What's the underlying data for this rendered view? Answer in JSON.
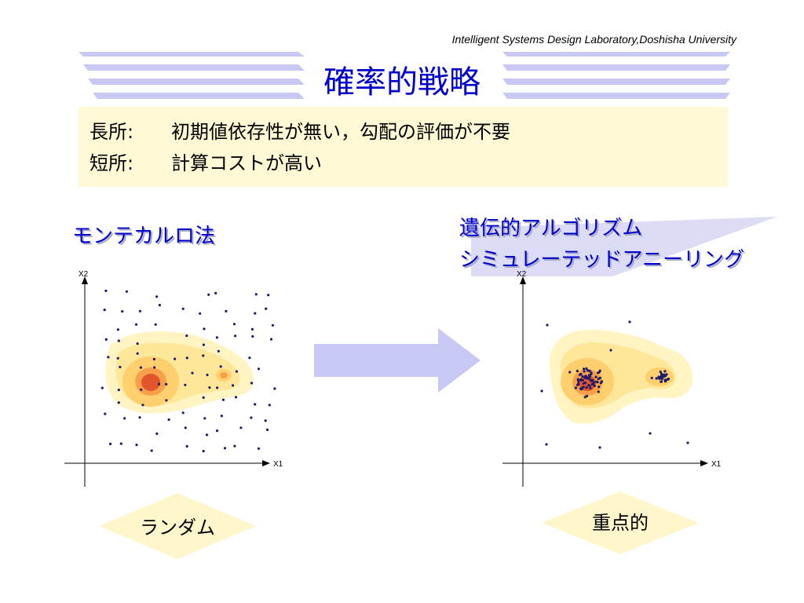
{
  "header": {
    "lab": "Intelligent Systems Design Laboratory,Doshisha University",
    "title": "確率的戦略"
  },
  "summary": {
    "pros_label": "長所:",
    "pros_text": "初期値依存性が無い，勾配の評価が不要",
    "cons_label": "短所:",
    "cons_text": "計算コストが高い"
  },
  "left": {
    "heading": "モンテカルロ法",
    "label": "ランダム",
    "x_axis": "X1",
    "y_axis": "X2"
  },
  "right": {
    "heading_line1": "遺伝的アルゴリズム",
    "heading_line2": "シミュレーテッドアニーリング",
    "label": "重点的",
    "x_axis": "X1",
    "y_axis": "X2"
  },
  "colors": {
    "title": "#0000cc",
    "summary_bg": "#fff9d6",
    "stripe": "#c8c8f2",
    "arrow": "#c8c8f5",
    "point": "#1a1a6e",
    "diamond": "#fff6cc",
    "contour": [
      "#fff4c2",
      "#ffe79a",
      "#ffcf6e",
      "#f7a04a",
      "#e2552a"
    ]
  }
}
